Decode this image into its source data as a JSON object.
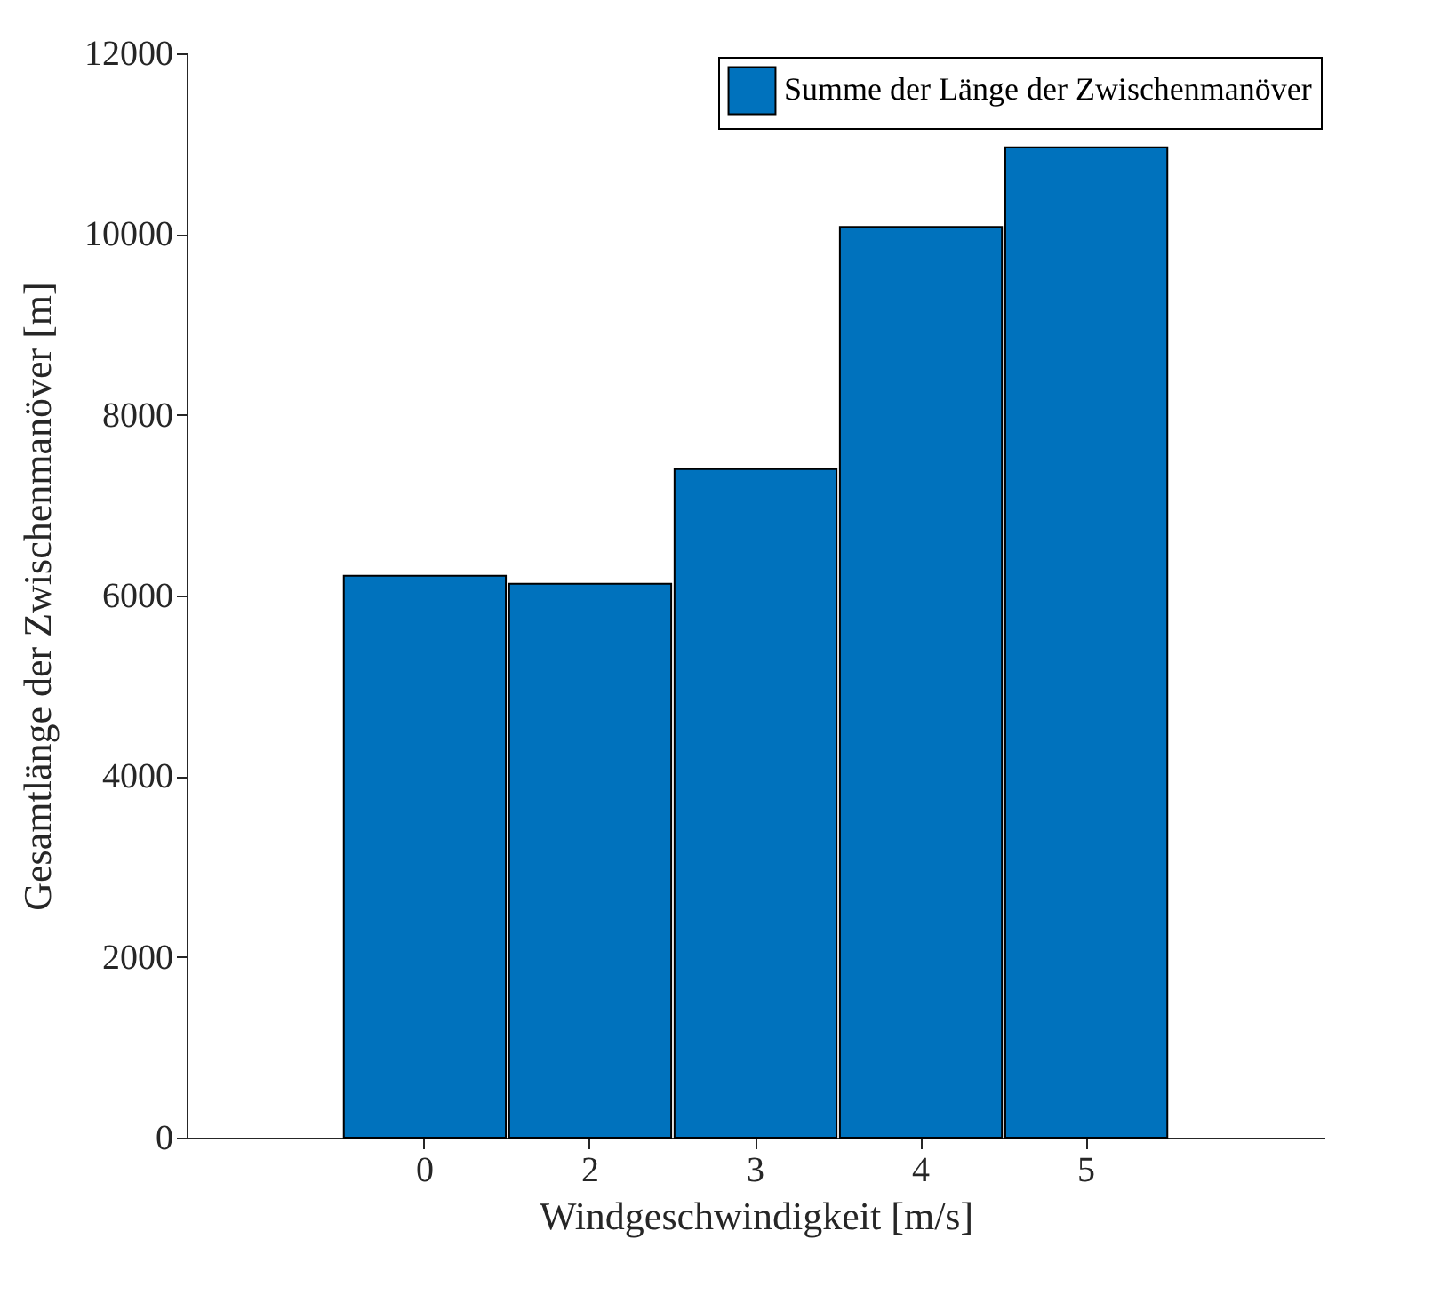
{
  "chart_data": {
    "type": "bar",
    "xlabel": "Windgeschwindigkeit [m/s]",
    "ylabel": "Gesamtlänge der Zwischenmanöver [m]",
    "categories": [
      "0",
      "2",
      "3",
      "4",
      "5"
    ],
    "series": [
      {
        "name": "Summe der Länge der Zwischenmanöver",
        "color": "#0072bd",
        "values": [
          6220,
          6130,
          7400,
          10080,
          10960
        ]
      }
    ],
    "ylim": [
      0,
      12000
    ],
    "yticks": [
      0,
      2000,
      4000,
      6000,
      8000,
      10000,
      12000
    ],
    "grid": false,
    "legend": "top right"
  }
}
